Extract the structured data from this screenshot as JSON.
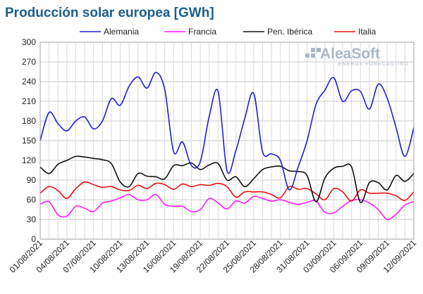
{
  "chart_data": {
    "type": "line",
    "title": "Producción solar europea [GWh]",
    "title_color": "#1b5e8c",
    "xlabel": "",
    "ylabel": "",
    "ylim": [
      0,
      300
    ],
    "yticks": [
      0,
      30,
      60,
      90,
      120,
      150,
      180,
      210,
      240,
      270,
      300
    ],
    "grid": true,
    "legend_position": "top",
    "categories": [
      "01/08/2021",
      "02/08/2021",
      "03/08/2021",
      "04/08/2021",
      "05/08/2021",
      "06/08/2021",
      "07/08/2021",
      "08/08/2021",
      "09/08/2021",
      "10/08/2021",
      "11/08/2021",
      "12/08/2021",
      "13/08/2021",
      "14/08/2021",
      "15/08/2021",
      "16/08/2021",
      "17/08/2021",
      "18/08/2021",
      "19/08/2021",
      "20/08/2021",
      "21/08/2021",
      "22/08/2021",
      "23/08/2021",
      "24/08/2021",
      "25/08/2021",
      "26/08/2021",
      "27/08/2021",
      "28/08/2021",
      "29/08/2021",
      "30/08/2021",
      "31/08/2021",
      "01/09/2021",
      "02/09/2021",
      "03/09/2021",
      "04/09/2021",
      "05/09/2021",
      "06/09/2021",
      "07/09/2021",
      "08/09/2021",
      "09/09/2021",
      "10/09/2021",
      "11/09/2021",
      "12/09/2021"
    ],
    "xtick_labels": [
      "01/08/2021",
      "04/08/2021",
      "07/08/2021",
      "10/08/2021",
      "13/08/2021",
      "16/08/2021",
      "19/08/2021",
      "22/08/2021",
      "25/08/2021",
      "28/08/2021",
      "31/08/2021",
      "03/09/2021",
      "06/09/2021",
      "09/09/2021",
      "12/09/2021"
    ],
    "series": [
      {
        "name": "Alemania",
        "color": "#1f1fd6",
        "values": [
          150,
          193,
          176,
          165,
          180,
          186,
          168,
          180,
          214,
          204,
          233,
          247,
          230,
          254,
          228,
          133,
          148,
          112,
          118,
          187,
          225,
          104,
          135,
          184,
          222,
          133,
          130,
          120,
          75,
          110,
          150,
          205,
          227,
          246,
          210,
          226,
          225,
          198,
          236,
          215,
          170,
          126,
          170
        ]
      },
      {
        "name": "Francia",
        "color": "#ff1aff",
        "values": [
          53,
          57,
          37,
          35,
          50,
          47,
          42,
          55,
          58,
          63,
          68,
          60,
          60,
          68,
          53,
          50,
          50,
          42,
          45,
          62,
          55,
          46,
          58,
          55,
          65,
          62,
          58,
          60,
          56,
          53,
          56,
          58,
          41,
          40,
          50,
          59,
          60,
          55,
          45,
          30,
          38,
          52,
          57
        ]
      },
      {
        "name": "Pen. Ibérica",
        "color": "#111111",
        "values": [
          110,
          100,
          114,
          120,
          126,
          125,
          123,
          121,
          115,
          87,
          80,
          100,
          96,
          95,
          92,
          112,
          112,
          116,
          106,
          113,
          115,
          90,
          95,
          80,
          92,
          106,
          110,
          111,
          104,
          103,
          97,
          57,
          93,
          108,
          111,
          110,
          56,
          86,
          86,
          75,
          97,
          88,
          100
        ]
      },
      {
        "name": "Italia",
        "color": "#ee1111",
        "values": [
          70,
          80,
          74,
          62,
          77,
          87,
          83,
          79,
          80,
          75,
          74,
          82,
          77,
          85,
          83,
          76,
          84,
          80,
          83,
          82,
          85,
          80,
          64,
          72,
          72,
          72,
          68,
          63,
          80,
          76,
          77,
          69,
          60,
          77,
          72,
          58,
          75,
          70,
          70,
          70,
          66,
          59,
          72
        ]
      }
    ]
  },
  "brand": {
    "name": "AleaSoft",
    "subtitle": "ENERGY FORECASTING",
    "color": "#aab8c8"
  }
}
